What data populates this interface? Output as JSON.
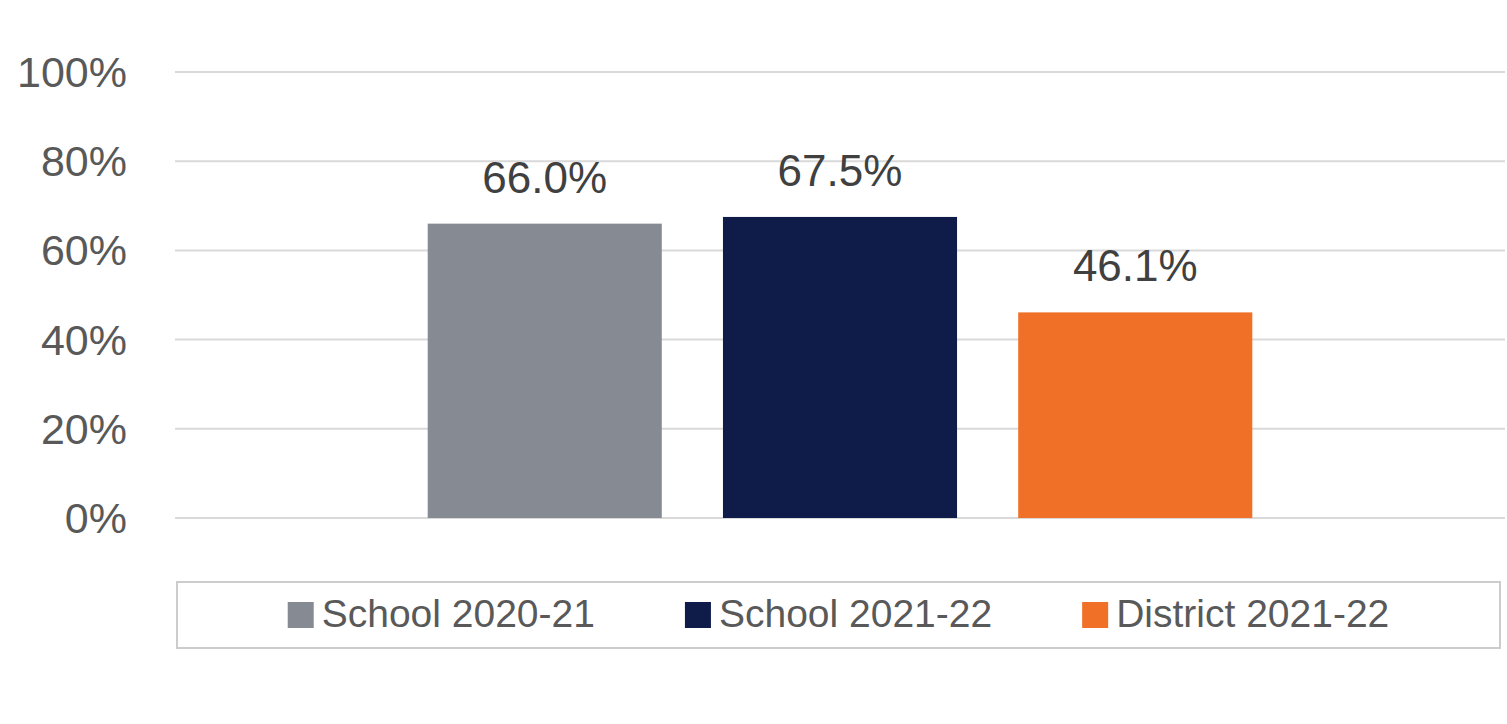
{
  "chart_data": {
    "type": "bar",
    "categories": [
      null
    ],
    "series": [
      {
        "name": "School 2020-21",
        "color": "#858a93",
        "values": [
          66.0
        ],
        "value_labels": [
          "66.0%"
        ]
      },
      {
        "name": "School 2021-22",
        "color": "#0f1c4a",
        "values": [
          67.5
        ],
        "value_labels": [
          "67.5%"
        ]
      },
      {
        "name": "District 2021-22",
        "color": "#f07027",
        "values": [
          46.1
        ],
        "value_labels": [
          "46.1%"
        ]
      }
    ],
    "ylim": [
      0,
      100
    ],
    "yticks": [
      {
        "value": 0,
        "label": "0%"
      },
      {
        "value": 20,
        "label": "20%"
      },
      {
        "value": 40,
        "label": "40%"
      },
      {
        "value": 60,
        "label": "60%"
      },
      {
        "value": 80,
        "label": "80%"
      },
      {
        "value": 100,
        "label": "100%"
      }
    ],
    "grid": true,
    "data_labels": true,
    "legend": "bottom"
  }
}
